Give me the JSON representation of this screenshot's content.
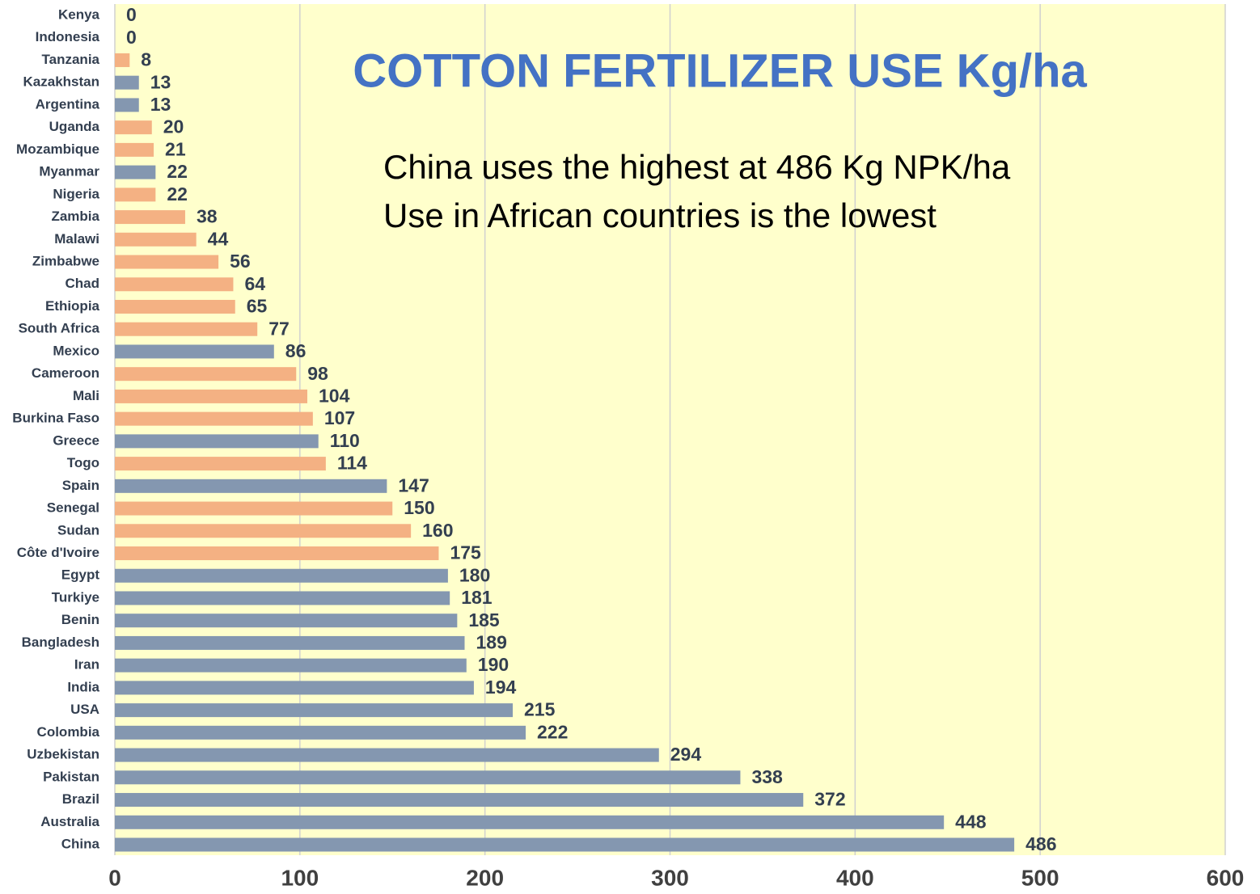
{
  "chart_data": {
    "type": "barh",
    "title": "COTTON FERTILIZER USE Kg/ha",
    "annotations": [
      "China uses the highest  at 486 Kg NPK/ha",
      "Use in African countries is the lowest"
    ],
    "categories": [
      "Kenya",
      "Indonesia",
      "Tanzania",
      "Kazakhstan",
      "Argentina",
      "Uganda",
      "Mozambique",
      "Myanmar",
      "Nigeria",
      "Zambia",
      "Malawi",
      "Zimbabwe",
      "Chad",
      "Ethiopia",
      "South Africa",
      "Mexico",
      "Cameroon",
      "Mali",
      "Burkina Faso",
      "Greece",
      "Togo",
      "Spain",
      "Senegal",
      "Sudan",
      "Côte d'Ivoire",
      "Egypt",
      "Turkiye",
      "Benin",
      "Bangladesh",
      "Iran",
      "India",
      "USA",
      "Colombia",
      "Uzbekistan",
      "Pakistan",
      "Brazil",
      "Australia",
      "China"
    ],
    "values": [
      0,
      0,
      8,
      13,
      13,
      20,
      21,
      22,
      22,
      38,
      44,
      56,
      64,
      65,
      77,
      86,
      98,
      104,
      107,
      110,
      114,
      147,
      150,
      160,
      175,
      180,
      181,
      185,
      189,
      190,
      194,
      215,
      222,
      294,
      338,
      372,
      448,
      486
    ],
    "colors": [
      "#f4b183",
      "#8497b0",
      "#f4b183",
      "#8497b0",
      "#8497b0",
      "#f4b183",
      "#f4b183",
      "#8497b0",
      "#f4b183",
      "#f4b183",
      "#f4b183",
      "#f4b183",
      "#f4b183",
      "#f4b183",
      "#f4b183",
      "#8497b0",
      "#f4b183",
      "#f4b183",
      "#f4b183",
      "#8497b0",
      "#f4b183",
      "#8497b0",
      "#f4b183",
      "#f4b183",
      "#f4b183",
      "#8497b0",
      "#8497b0",
      "#8497b0",
      "#8497b0",
      "#8497b0",
      "#8497b0",
      "#8497b0",
      "#8497b0",
      "#8497b0",
      "#8497b0",
      "#8497b0",
      "#8497b0",
      "#8497b0"
    ],
    "xlim": [
      0,
      600
    ],
    "xticks": [
      0,
      100,
      200,
      300,
      400,
      500,
      600
    ],
    "grid": true,
    "plot_background": "#ffffcc"
  }
}
